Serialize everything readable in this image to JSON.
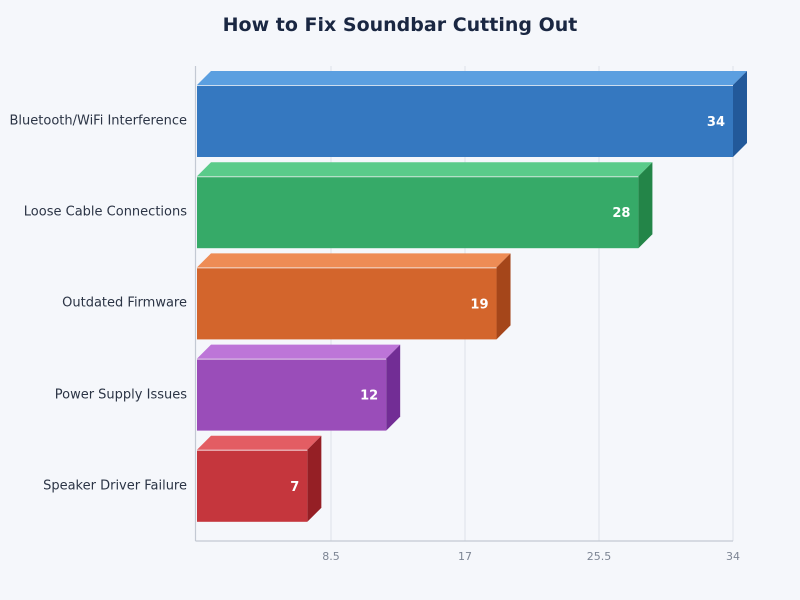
{
  "title": "How to Fix Soundbar Cutting Out",
  "chart_data": {
    "type": "bar",
    "orientation": "horizontal",
    "style": "3d",
    "title": "How to Fix Soundbar Cutting Out",
    "xlabel": "",
    "ylabel": "",
    "categories": [
      "Bluetooth/WiFi Interference",
      "Loose Cable Connections",
      "Outdated Firmware",
      "Power Supply Issues",
      "Speaker Driver Failure"
    ],
    "values": [
      34,
      28,
      19,
      12,
      7
    ],
    "data_labels": [
      "34",
      "28",
      "19",
      "12",
      "7"
    ],
    "xlim": [
      0,
      34
    ],
    "xticks": [
      "8.5",
      "17",
      "25.5",
      "34"
    ],
    "grid": true,
    "legend": null,
    "colors": [
      {
        "front": "#3578c0",
        "top": "#5b9fe0",
        "side": "#22599a"
      },
      {
        "front": "#36aa68",
        "top": "#5acb8a",
        "side": "#238548"
      },
      {
        "front": "#d3652c",
        "top": "#ee8c55",
        "side": "#a5461a"
      },
      {
        "front": "#9a4db9",
        "top": "#bd75d8",
        "side": "#722d95"
      },
      {
        "front": "#c5363d",
        "top": "#e35d63",
        "side": "#951f25"
      }
    ]
  }
}
